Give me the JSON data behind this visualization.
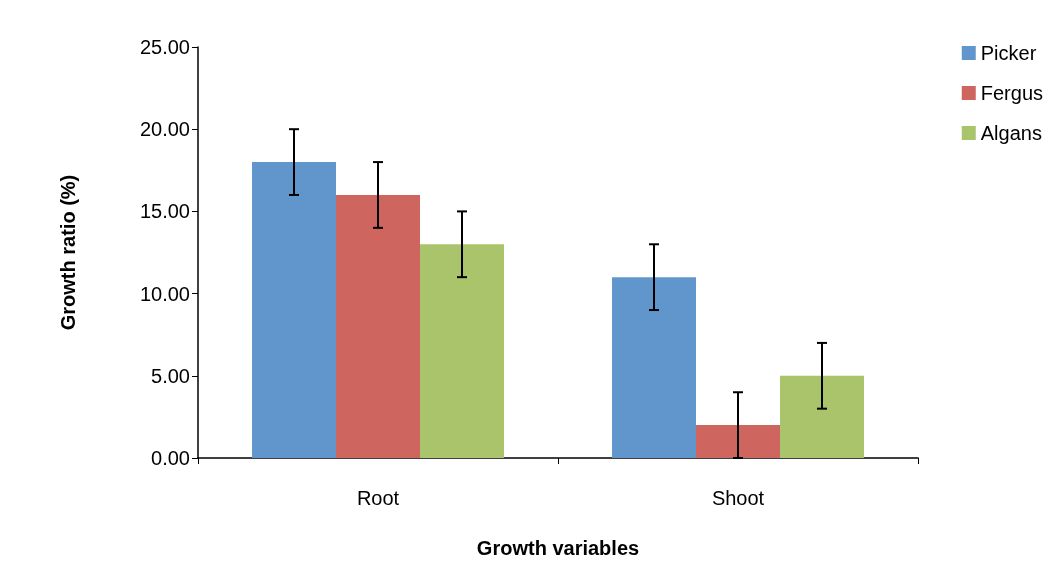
{
  "chart_data": {
    "type": "bar",
    "xlabel": "Growth variables",
    "ylabel": "Growth ratio (%)",
    "categories": [
      "Root",
      "Shoot"
    ],
    "series": [
      {
        "name": "Picker",
        "color": "#6096cb",
        "values": [
          18,
          11
        ],
        "errors": [
          2,
          2
        ]
      },
      {
        "name": "Fergus",
        "color": "#cf655f",
        "values": [
          16,
          2
        ],
        "errors": [
          2,
          2
        ]
      },
      {
        "name": "Algans",
        "color": "#a9c46b",
        "values": [
          13,
          5
        ],
        "errors": [
          2,
          2
        ]
      }
    ],
    "ylim": [
      0,
      25
    ],
    "yticks": [
      {
        "value": 0,
        "label": "0.00"
      },
      {
        "value": 5,
        "label": "5.00"
      },
      {
        "value": 10,
        "label": "10.00"
      },
      {
        "value": 15,
        "label": "15.00"
      },
      {
        "value": 20,
        "label": "20.00"
      },
      {
        "value": 25,
        "label": "25.00"
      }
    ],
    "grid": false,
    "legend": "top right"
  }
}
